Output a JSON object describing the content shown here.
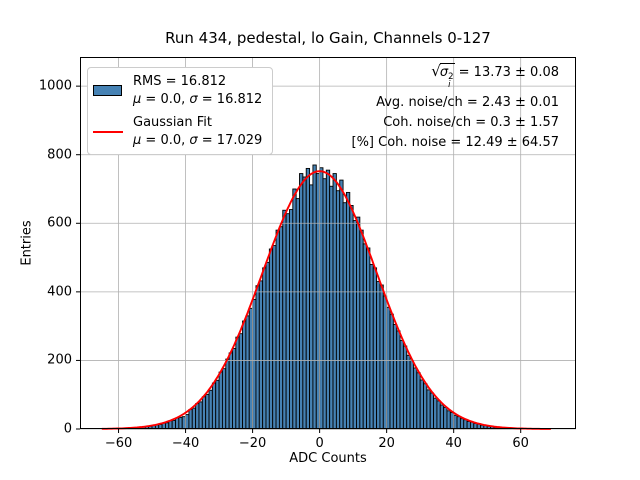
{
  "chart_data": {
    "type": "bar",
    "subtype": "histogram",
    "title": "Run 434, pedestal, lo Gain, Channels 0-127",
    "xlabel": "ADC Counts",
    "ylabel": "Entries",
    "xlim": [
      -71.5,
      76.5
    ],
    "ylim": [
      0,
      1085
    ],
    "xticks": [
      -60,
      -40,
      -20,
      0,
      20,
      40,
      60
    ],
    "yticks": [
      0,
      200,
      400,
      600,
      800,
      1000
    ],
    "grid": true,
    "histogram": {
      "bin_start": -65,
      "bin_width": 1,
      "counts": [
        0,
        1,
        0,
        1,
        1,
        2,
        2,
        3,
        2,
        4,
        4,
        5,
        6,
        7,
        8,
        11,
        12,
        13,
        17,
        18,
        24,
        25,
        32,
        34,
        36,
        42,
        57,
        61,
        74,
        79,
        94,
        101,
        113,
        134,
        142,
        166,
        176,
        204,
        222,
        235,
        268,
        278,
        315,
        330,
        352,
        378,
        418,
        432,
        470,
        486,
        525,
        535,
        580,
        590,
        638,
        628,
        640,
        700,
        672,
        745,
        735,
        760,
        712,
        770,
        745,
        762,
        730,
        755,
        708,
        745,
        695,
        726,
        660,
        690,
        652,
        608,
        618,
        580,
        540,
        528,
        480,
        470,
        430,
        420,
        388,
        355,
        335,
        305,
        286,
        258,
        242,
        215,
        200,
        178,
        164,
        143,
        132,
        114,
        105,
        90,
        82,
        70,
        63,
        53,
        48,
        40,
        36,
        30,
        27,
        22,
        20,
        16,
        14,
        11,
        10,
        8,
        7,
        5,
        4,
        3,
        3,
        2,
        2,
        1,
        1,
        1,
        1,
        0,
        1,
        0,
        0,
        0,
        0,
        0
      ],
      "stats": {
        "rms": 16.812,
        "mu": 0.0,
        "sigma": 16.812
      }
    },
    "fit": {
      "label": "Gaussian Fit",
      "mu": 0.0,
      "sigma": 17.029,
      "amplitude": 752,
      "x_range": [
        -65,
        69
      ]
    },
    "colors": {
      "bar_fill": "#4682b4",
      "bar_edge": "#000000",
      "fit_line": "#ff0000",
      "grid": "#b0b0b0",
      "spine": "#000000"
    }
  },
  "legend": {
    "entries": [
      {
        "swatch": "histogram-patch",
        "line1": "RMS = 16.812",
        "line2_parts": [
          "μ",
          " = 0.0, ",
          "σ",
          " = 16.812"
        ]
      },
      {
        "swatch": "gaussian-fit-line",
        "line1": "Gaussian Fit",
        "line2_parts": [
          "μ",
          " = 0.0, ",
          "σ",
          " = 17.029"
        ]
      }
    ]
  },
  "stats": {
    "line1": {
      "radical": "√",
      "sigma": "σ",
      "sup": "2",
      "sub": "i",
      "value": " = 13.73 ± 0.08"
    },
    "line2": "Avg. noise/ch = 2.43 ± 0.01",
    "line3": "Coh. noise/ch = 0.3 ± 1.57",
    "line4": "[%] Coh. noise = 12.49 ± 64.57"
  }
}
